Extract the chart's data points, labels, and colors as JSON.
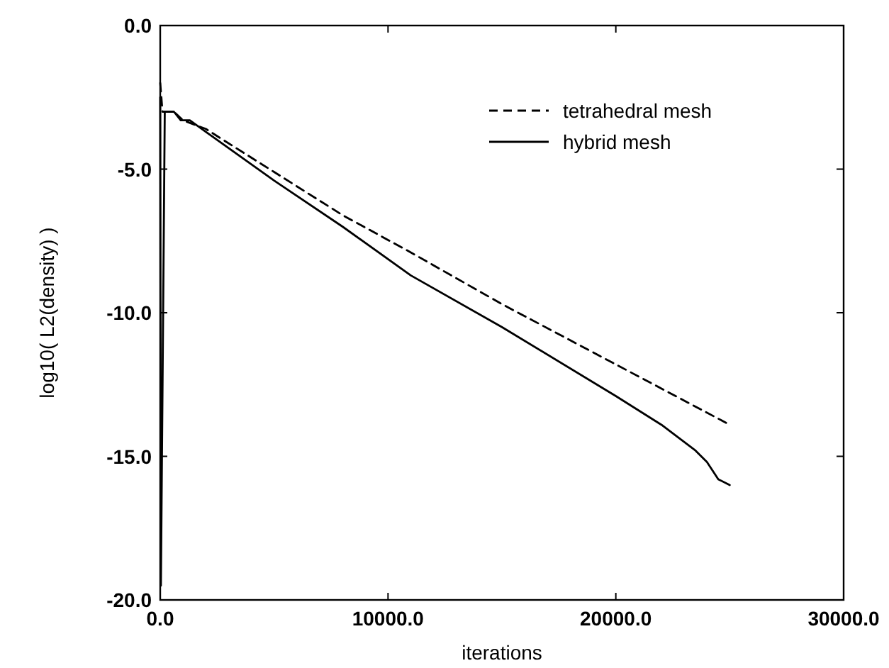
{
  "chart_data": {
    "type": "line",
    "xlabel": "iterations",
    "ylabel": "log10( L2(density) )",
    "xlim": [
      0,
      30000
    ],
    "xticks": [
      {
        "value": 0,
        "label": "0.0"
      },
      {
        "value": 10000,
        "label": "10000.0"
      },
      {
        "value": 20000,
        "label": "20000.0"
      },
      {
        "value": 30000,
        "label": "30000.0"
      }
    ],
    "ylim": [
      -20,
      0
    ],
    "yticks": [
      {
        "value": -20,
        "label": "-20.0"
      },
      {
        "value": -15,
        "label": "-15.0"
      },
      {
        "value": -10,
        "label": "-10.0"
      },
      {
        "value": -5,
        "label": "-5.0"
      },
      {
        "value": 0,
        "label": "0.0"
      }
    ],
    "grid": false,
    "legend": "top right",
    "series": [
      {
        "name": "tetrahedral mesh",
        "color": "#000000",
        "line_style": "dashed",
        "x": [
          0,
          100,
          600,
          1000,
          2000,
          5000,
          8000,
          11000,
          15000,
          20000,
          25000
        ],
        "values": [
          -2.0,
          -3.0,
          -3.0,
          -3.3,
          -3.6,
          -5.1,
          -6.6,
          -7.9,
          -9.7,
          -11.8,
          -13.9
        ]
      },
      {
        "name": "hybrid mesh",
        "color": "#000000",
        "line_style": "solid",
        "x": [
          0,
          30,
          200,
          600,
          900,
          1300,
          2000,
          5000,
          8000,
          11000,
          15000,
          20000,
          22000,
          23500,
          24000,
          24500,
          25000
        ],
        "values": [
          -2.5,
          -19.5,
          -3.0,
          -3.0,
          -3.3,
          -3.3,
          -3.7,
          -5.4,
          -7.0,
          -8.7,
          -10.5,
          -12.9,
          -13.9,
          -14.8,
          -15.2,
          -15.8,
          -16.0
        ]
      }
    ]
  }
}
